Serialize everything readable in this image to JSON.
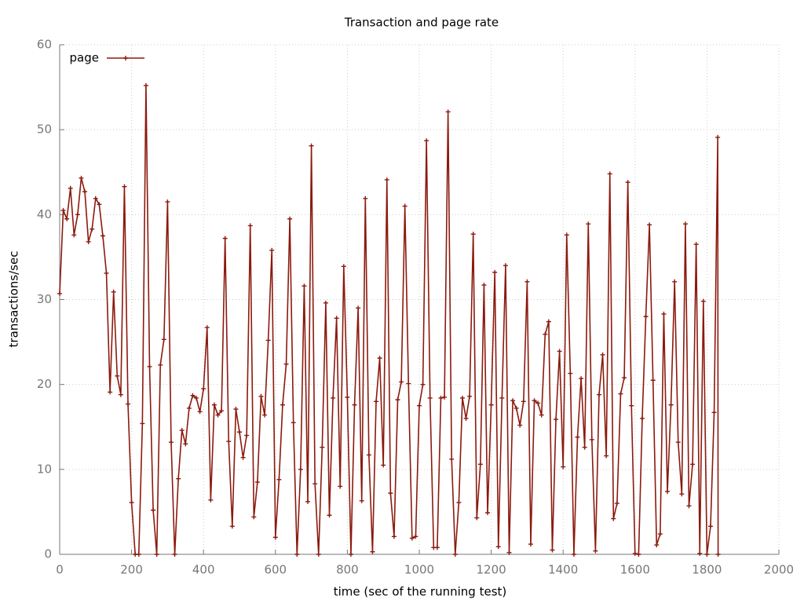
{
  "chart_data": {
    "type": "line",
    "title": "Transaction and page rate",
    "x_label": "time (sec of the running test)",
    "y_label": "transactions/sec",
    "x": [
      0,
      10,
      20,
      30,
      40,
      50,
      60,
      70,
      80,
      90,
      100,
      110,
      120,
      130,
      140,
      150,
      160,
      170,
      180,
      190,
      200,
      210,
      220,
      230,
      240,
      250,
      260,
      270,
      280,
      290,
      300,
      310,
      320,
      330,
      340,
      350,
      360,
      370,
      380,
      390,
      400,
      410,
      420,
      430,
      440,
      450,
      460,
      470,
      480,
      490,
      500,
      510,
      520,
      530,
      540,
      550,
      560,
      570,
      580,
      590,
      600,
      610,
      620,
      630,
      640,
      650,
      660,
      670,
      680,
      690,
      700,
      710,
      720,
      730,
      740,
      750,
      760,
      770,
      780,
      790,
      800,
      810,
      820,
      830,
      840,
      850,
      860,
      870,
      880,
      890,
      900,
      910,
      920,
      930,
      940,
      950,
      960,
      970,
      980,
      990,
      1000,
      1010,
      1020,
      1030,
      1040,
      1050,
      1060,
      1070,
      1080,
      1090,
      1100,
      1110,
      1120,
      1130,
      1140,
      1150,
      1160,
      1170,
      1180,
      1190,
      1200,
      1210,
      1220,
      1230,
      1240,
      1250,
      1260,
      1270,
      1280,
      1290,
      1300,
      1310,
      1320,
      1330,
      1340,
      1350,
      1360,
      1370,
      1380,
      1390,
      1400,
      1410,
      1420,
      1430,
      1440,
      1450,
      1460,
      1470,
      1480,
      1490,
      1500,
      1510,
      1520,
      1530,
      1540,
      1550,
      1560,
      1570,
      1580,
      1590,
      1600,
      1610,
      1620,
      1630,
      1640,
      1650,
      1660,
      1670,
      1680,
      1690,
      1700,
      1710,
      1720,
      1730,
      1740,
      1750,
      1760,
      1770,
      1780,
      1790,
      1800,
      1810,
      1820,
      1830,
      1831
    ],
    "series": [
      {
        "name": "page",
        "color": "#8b1a0e",
        "values": [
          30.7,
          40.5,
          39.5,
          43.1,
          37.6,
          40,
          44.3,
          42.7,
          36.8,
          38.3,
          41.9,
          41.2,
          37.5,
          33.1,
          19.1,
          30.9,
          21,
          18.8,
          43.3,
          17.7,
          6.1,
          0,
          0,
          15.4,
          55.2,
          22.1,
          5.2,
          0,
          22.3,
          25.3,
          41.5,
          13.2,
          0,
          8.9,
          14.6,
          13,
          17.2,
          18.7,
          18.4,
          16.8,
          19.5,
          26.7,
          6.4,
          17.6,
          16.4,
          16.9,
          37.2,
          13.3,
          3.3,
          17.1,
          14.4,
          11.4,
          14,
          38.7,
          4.4,
          8.5,
          18.6,
          16.4,
          25.2,
          35.8,
          2,
          8.8,
          17.6,
          22.4,
          39.5,
          15.5,
          0,
          10,
          31.6,
          6.2,
          48.1,
          8.3,
          0,
          12.6,
          29.6,
          4.6,
          18.4,
          27.8,
          8,
          33.9,
          18.5,
          0,
          17.6,
          29,
          6.3,
          41.9,
          11.7,
          0.3,
          18,
          23.1,
          10.5,
          44.1,
          7.2,
          2.1,
          18.2,
          20.3,
          41,
          20.1,
          1.9,
          2.1,
          17.5,
          20,
          48.7,
          18.4,
          0.8,
          0.8,
          18.4,
          18.5,
          52.1,
          11.2,
          0,
          6.1,
          18.4,
          16,
          18.6,
          37.7,
          4.3,
          10.6,
          31.7,
          4.9,
          17.6,
          33.2,
          0.9,
          18.4,
          34,
          0.2,
          18.1,
          17.2,
          15.2,
          18,
          32.1,
          1.2,
          18.1,
          17.8,
          16.4,
          25.9,
          27.4,
          0.5,
          15.9,
          23.9,
          10.3,
          37.6,
          21.3,
          0,
          13.8,
          20.7,
          12.6,
          38.9,
          13.5,
          0.4,
          18.8,
          23.5,
          11.6,
          44.8,
          4.2,
          6,
          18.9,
          20.8,
          43.8,
          17.5,
          0.1,
          0,
          16,
          28,
          38.8,
          20.5,
          1.1,
          2.4,
          28.3,
          7.4,
          17.6,
          32.1,
          13.2,
          7.1,
          38.9,
          5.7,
          10.6,
          36.5,
          0.1,
          29.8,
          0,
          3.3,
          16.7,
          49.1,
          0
        ]
      }
    ],
    "xlim": [
      0,
      2000
    ],
    "xticks": [
      0,
      200,
      400,
      600,
      800,
      1000,
      1200,
      1400,
      1600,
      1800,
      2000
    ],
    "ylim": [
      0,
      60
    ],
    "yticks": [
      0,
      10,
      20,
      30,
      40,
      50,
      60
    ],
    "grid": true,
    "legend": "top-left"
  }
}
